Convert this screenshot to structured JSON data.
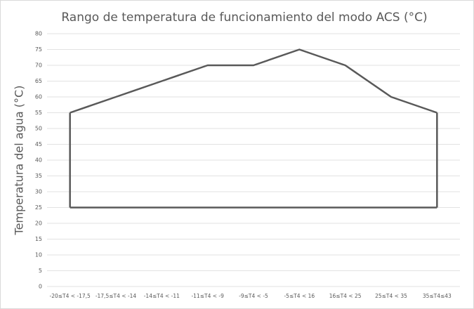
{
  "chart_data": {
    "type": "line",
    "title": "Rango de temperatura de funcionamiento del modo ACS (°C)",
    "y_label": "Temperatura del agua (°C)",
    "categories": [
      "-20≤T4 < -17,5",
      "-17,5≤T4 < -14",
      "-14≤T4 < -11",
      "-11≤T4 < -9",
      "-9≤T4 < -5",
      "-5≤T4 < 16",
      "16≤T4 < 25",
      "25≤T4 < 35",
      "35≤T4≤43"
    ],
    "series": [
      {
        "color": "#595959",
        "values": [
          55,
          60,
          65,
          70,
          70,
          75,
          70,
          60,
          55
        ]
      },
      {
        "color": "#595959",
        "values": [
          25,
          25,
          25,
          25,
          25,
          25,
          25,
          25,
          25
        ]
      }
    ],
    "ylim": [
      0,
      80
    ],
    "yticks": [
      0,
      5,
      10,
      15,
      20,
      25,
      30,
      35,
      40,
      45,
      50,
      55,
      60,
      65,
      70,
      75,
      80
    ],
    "grid": true
  }
}
